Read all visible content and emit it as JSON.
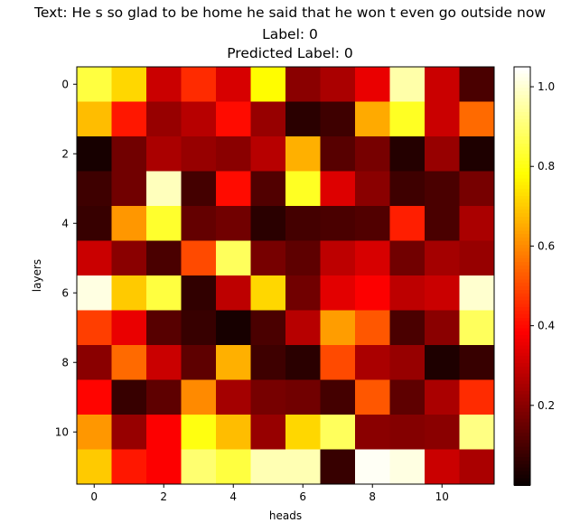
{
  "chart_data": {
    "type": "heatmap",
    "title_lines": [
      "Text: He s so glad to be home he said that he won t even go outside now",
      "Label: 0",
      "Predicted Label: 0"
    ],
    "xlabel": "heads",
    "ylabel": "layers",
    "x_ticks": [
      "0",
      "2",
      "4",
      "6",
      "8",
      "10"
    ],
    "y_ticks": [
      "0",
      "2",
      "4",
      "6",
      "8",
      "10"
    ],
    "colormap": "hot",
    "vmin": 0.0,
    "vmax": 1.05,
    "colorbar_ticks": [
      "0.2",
      "0.4",
      "0.6",
      "0.8",
      "1.0"
    ],
    "colorbar_tick_values": [
      0.2,
      0.4,
      0.6,
      0.8,
      1.0
    ],
    "values": [
      [
        0.85,
        0.72,
        0.3,
        0.45,
        0.32,
        0.78,
        0.2,
        0.25,
        0.35,
        0.96,
        0.3,
        0.1
      ],
      [
        0.68,
        0.42,
        0.22,
        0.27,
        0.4,
        0.22,
        0.05,
        0.08,
        0.65,
        0.82,
        0.3,
        0.55
      ],
      [
        0.02,
        0.16,
        0.25,
        0.22,
        0.2,
        0.27,
        0.66,
        0.12,
        0.17,
        0.04,
        0.22,
        0.03
      ],
      [
        0.08,
        0.16,
        0.98,
        0.09,
        0.4,
        0.11,
        0.82,
        0.33,
        0.2,
        0.08,
        0.1,
        0.17
      ],
      [
        0.07,
        0.62,
        0.83,
        0.14,
        0.16,
        0.05,
        0.09,
        0.1,
        0.11,
        0.43,
        0.1,
        0.25
      ],
      [
        0.3,
        0.2,
        0.1,
        0.5,
        0.88,
        0.17,
        0.13,
        0.28,
        0.32,
        0.16,
        0.24,
        0.22
      ],
      [
        1.02,
        0.7,
        0.85,
        0.06,
        0.28,
        0.72,
        0.16,
        0.34,
        0.38,
        0.28,
        0.3,
        1.0
      ],
      [
        0.48,
        0.35,
        0.12,
        0.07,
        0.02,
        0.1,
        0.27,
        0.63,
        0.52,
        0.1,
        0.2,
        0.88
      ],
      [
        0.2,
        0.55,
        0.3,
        0.13,
        0.66,
        0.08,
        0.05,
        0.5,
        0.25,
        0.22,
        0.03,
        0.07
      ],
      [
        0.39,
        0.07,
        0.13,
        0.6,
        0.24,
        0.17,
        0.16,
        0.09,
        0.52,
        0.13,
        0.25,
        0.45
      ],
      [
        0.62,
        0.22,
        0.38,
        0.8,
        0.68,
        0.22,
        0.72,
        0.88,
        0.2,
        0.19,
        0.2,
        0.92
      ],
      [
        0.7,
        0.42,
        0.38,
        0.9,
        0.85,
        0.97,
        0.97,
        0.07,
        1.04,
        1.02,
        0.3,
        0.25
      ]
    ]
  }
}
